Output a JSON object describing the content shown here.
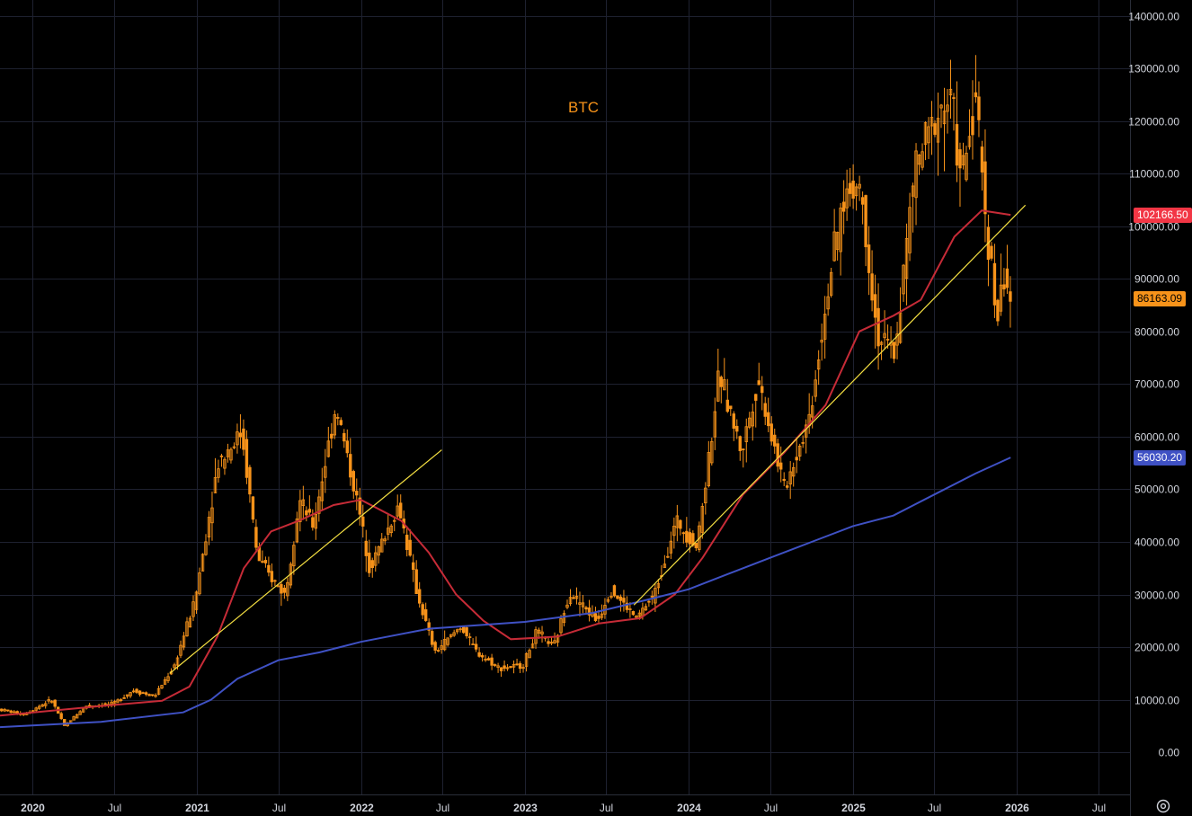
{
  "chart_data": {
    "type": "candlestick",
    "title": "BTC",
    "colors": {
      "candles": "#f7931a",
      "ma_short": "#c62b37",
      "ma_long": "#3f51c4",
      "trendline": "#f5e042",
      "grid": "#1e2130",
      "axis_text": "#d1d4dc",
      "badge_red": "#f23645",
      "badge_orange": "#f7931a",
      "badge_blue": "#3f51c4"
    },
    "y_axis": {
      "min": -8000,
      "max": 143000,
      "ticks": [
        0,
        10000,
        20000,
        30000,
        40000,
        50000,
        60000,
        70000,
        80000,
        90000,
        100000,
        110000,
        120000,
        130000,
        140000
      ],
      "tick_labels": [
        "0.00",
        "10000.00",
        "20000.00",
        "30000.00",
        "40000.00",
        "50000.00",
        "60000.00",
        "70000.00",
        "80000.00",
        "90000.00",
        "100000.00",
        "110000.00",
        "120000.00",
        "130000.00",
        "140000.00"
      ]
    },
    "x_axis": {
      "min": "2019-10-20",
      "max": "2026-09-10",
      "ticks": [
        {
          "date": "2020-01-01",
          "label": "2020",
          "year": true
        },
        {
          "date": "2020-07-01",
          "label": "Jul",
          "year": false
        },
        {
          "date": "2021-01-01",
          "label": "2021",
          "year": true
        },
        {
          "date": "2021-07-01",
          "label": "Jul",
          "year": false
        },
        {
          "date": "2022-01-01",
          "label": "2022",
          "year": true
        },
        {
          "date": "2022-07-01",
          "label": "Jul",
          "year": false
        },
        {
          "date": "2023-01-01",
          "label": "2023",
          "year": true
        },
        {
          "date": "2023-07-01",
          "label": "Jul",
          "year": false
        },
        {
          "date": "2024-01-01",
          "label": "2024",
          "year": true
        },
        {
          "date": "2024-07-01",
          "label": "Jul",
          "year": false
        },
        {
          "date": "2025-01-01",
          "label": "2025",
          "year": true
        },
        {
          "date": "2025-07-01",
          "label": "Jul",
          "year": false
        },
        {
          "date": "2026-01-01",
          "label": "2026",
          "year": true
        },
        {
          "date": "2026-07-01",
          "label": "Jul",
          "year": false
        }
      ]
    },
    "price_path": [
      [
        "2019-10-20",
        8200
      ],
      [
        "2019-12-15",
        7200
      ],
      [
        "2020-02-15",
        10000
      ],
      [
        "2020-03-15",
        5000
      ],
      [
        "2020-05-01",
        8800
      ],
      [
        "2020-07-01",
        9200
      ],
      [
        "2020-08-15",
        11800
      ],
      [
        "2020-10-01",
        10600
      ],
      [
        "2020-11-15",
        16500
      ],
      [
        "2020-12-31",
        29000
      ],
      [
        "2021-02-20",
        55000
      ],
      [
        "2021-04-14",
        61000
      ],
      [
        "2021-05-19",
        37000
      ],
      [
        "2021-06-20",
        33000
      ],
      [
        "2021-07-20",
        30000
      ],
      [
        "2021-08-20",
        48000
      ],
      [
        "2021-09-20",
        43000
      ],
      [
        "2021-11-10",
        66000
      ],
      [
        "2021-12-31",
        46000
      ],
      [
        "2022-01-24",
        35000
      ],
      [
        "2022-03-30",
        47000
      ],
      [
        "2022-05-10",
        30000
      ],
      [
        "2022-06-18",
        19000
      ],
      [
        "2022-08-15",
        24000
      ],
      [
        "2022-09-20",
        19000
      ],
      [
        "2022-11-09",
        16000
      ],
      [
        "2022-12-31",
        16500
      ],
      [
        "2023-01-31",
        23000
      ],
      [
        "2023-03-10",
        20000
      ],
      [
        "2023-04-14",
        30500
      ],
      [
        "2023-06-15",
        25000
      ],
      [
        "2023-07-14",
        31000
      ],
      [
        "2023-09-10",
        25500
      ],
      [
        "2023-10-20",
        30000
      ],
      [
        "2023-12-08",
        44000
      ],
      [
        "2024-01-23",
        39000
      ],
      [
        "2024-03-13",
        72000
      ],
      [
        "2024-05-01",
        57000
      ],
      [
        "2024-06-07",
        71000
      ],
      [
        "2024-08-05",
        50000
      ],
      [
        "2024-09-30",
        64000
      ],
      [
        "2024-11-13",
        90000
      ],
      [
        "2024-12-17",
        106000
      ],
      [
        "2025-01-20",
        108000
      ],
      [
        "2025-02-28",
        79000
      ],
      [
        "2025-04-08",
        76000
      ],
      [
        "2025-05-22",
        111000
      ],
      [
        "2025-07-14",
        122000
      ],
      [
        "2025-08-14",
        124000
      ],
      [
        "2025-09-01",
        108000
      ],
      [
        "2025-10-06",
        125000
      ],
      [
        "2025-10-20",
        108000
      ],
      [
        "2025-11-21",
        82000
      ],
      [
        "2025-12-10",
        92000
      ],
      [
        "2025-12-18",
        86163
      ]
    ],
    "ma_short": [
      [
        "2019-10-20",
        7000
      ],
      [
        "2020-06-01",
        8800
      ],
      [
        "2020-10-15",
        9800
      ],
      [
        "2020-12-15",
        12500
      ],
      [
        "2021-02-15",
        22000
      ],
      [
        "2021-04-15",
        35000
      ],
      [
        "2021-06-15",
        42000
      ],
      [
        "2021-08-15",
        44000
      ],
      [
        "2021-11-01",
        47000
      ],
      [
        "2022-01-01",
        48000
      ],
      [
        "2022-04-01",
        44000
      ],
      [
        "2022-06-01",
        38000
      ],
      [
        "2022-08-01",
        30000
      ],
      [
        "2022-10-01",
        25000
      ],
      [
        "2022-12-01",
        21500
      ],
      [
        "2023-03-15",
        22000
      ],
      [
        "2023-06-15",
        24500
      ],
      [
        "2023-09-15",
        25500
      ],
      [
        "2023-12-01",
        30000
      ],
      [
        "2024-02-01",
        37000
      ],
      [
        "2024-05-01",
        49000
      ],
      [
        "2024-08-01",
        57000
      ],
      [
        "2024-11-01",
        66000
      ],
      [
        "2025-01-15",
        80000
      ],
      [
        "2025-04-01",
        83000
      ],
      [
        "2025-06-01",
        86000
      ],
      [
        "2025-08-15",
        98000
      ],
      [
        "2025-10-15",
        103000
      ],
      [
        "2025-12-18",
        102166.5
      ]
    ],
    "ma_long": [
      [
        "2019-10-20",
        4800
      ],
      [
        "2020-06-01",
        5800
      ],
      [
        "2020-12-01",
        7600
      ],
      [
        "2021-02-01",
        10000
      ],
      [
        "2021-04-01",
        14000
      ],
      [
        "2021-07-01",
        17500
      ],
      [
        "2021-10-01",
        19000
      ],
      [
        "2022-01-01",
        21000
      ],
      [
        "2022-06-01",
        23500
      ],
      [
        "2023-01-01",
        24800
      ],
      [
        "2023-06-01",
        26500
      ],
      [
        "2023-10-01",
        29000
      ],
      [
        "2024-01-01",
        31000
      ],
      [
        "2024-04-01",
        34000
      ],
      [
        "2024-07-01",
        37000
      ],
      [
        "2024-10-01",
        40000
      ],
      [
        "2025-01-01",
        43000
      ],
      [
        "2025-04-01",
        45000
      ],
      [
        "2025-07-01",
        49000
      ],
      [
        "2025-10-01",
        53000
      ],
      [
        "2025-12-18",
        56030.2
      ]
    ],
    "trendlines": [
      {
        "from": [
          "2020-11-01",
          15000
        ],
        "to": [
          "2022-06-30",
          57500
        ]
      },
      {
        "from": [
          "2023-09-01",
          28000
        ],
        "to": [
          "2026-01-20",
          104000
        ]
      }
    ],
    "badges": [
      {
        "label": "102166.50",
        "value": 102166.5,
        "bg": "#f23645",
        "fg": "#ffffff"
      },
      {
        "label": "86163.09",
        "value": 86163.09,
        "bg": "#f7931a",
        "fg": "#000000"
      },
      {
        "label": "56030.20",
        "value": 56030.2,
        "bg": "#3f51c4",
        "fg": "#ffffff"
      }
    ]
  }
}
